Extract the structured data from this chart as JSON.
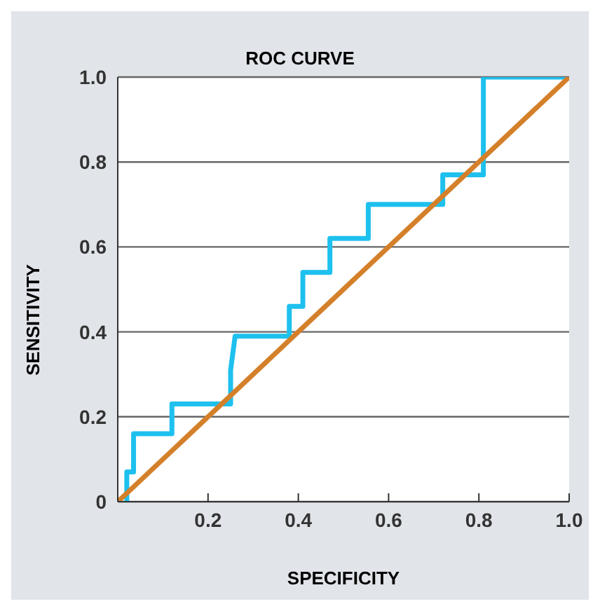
{
  "chart_data": {
    "type": "line",
    "title": "ROC CURVE",
    "xlabel": "SPECIFICITY",
    "ylabel": "SENSITIVITY",
    "series": [
      {
        "color": "#1ec0ee",
        "x": [
          0.02,
          0.02,
          0.035,
          0.035,
          0.12,
          0.12,
          0.25,
          0.25,
          0.26,
          0.38,
          0.38,
          0.41,
          0.41,
          0.47,
          0.47,
          0.555,
          0.555,
          0.72,
          0.72,
          0.81,
          0.81,
          1.0
        ],
        "values": [
          0,
          0.07,
          0.07,
          0.16,
          0.16,
          0.23,
          0.23,
          0.31,
          0.39,
          0.39,
          0.46,
          0.46,
          0.54,
          0.54,
          0.62,
          0.62,
          0.7,
          0.7,
          0.77,
          0.77,
          1.0,
          1.0
        ]
      },
      {
        "color": "#d4802a",
        "x": [
          0,
          1
        ],
        "values": [
          0,
          1
        ]
      }
    ],
    "xlim": [
      0,
      1
    ],
    "xticks": [
      {
        "value": 0,
        "label": null
      },
      0.2,
      0.4,
      0.6,
      0.8,
      {
        "value": 1,
        "label": "1.0"
      }
    ],
    "ylim": [
      0,
      1
    ],
    "yticks": [
      0,
      0.2,
      0.4,
      0.6,
      0.8,
      {
        "value": 1,
        "label": "1.0"
      }
    ],
    "grid": "y",
    "marker": "none",
    "line_style": "solid"
  }
}
